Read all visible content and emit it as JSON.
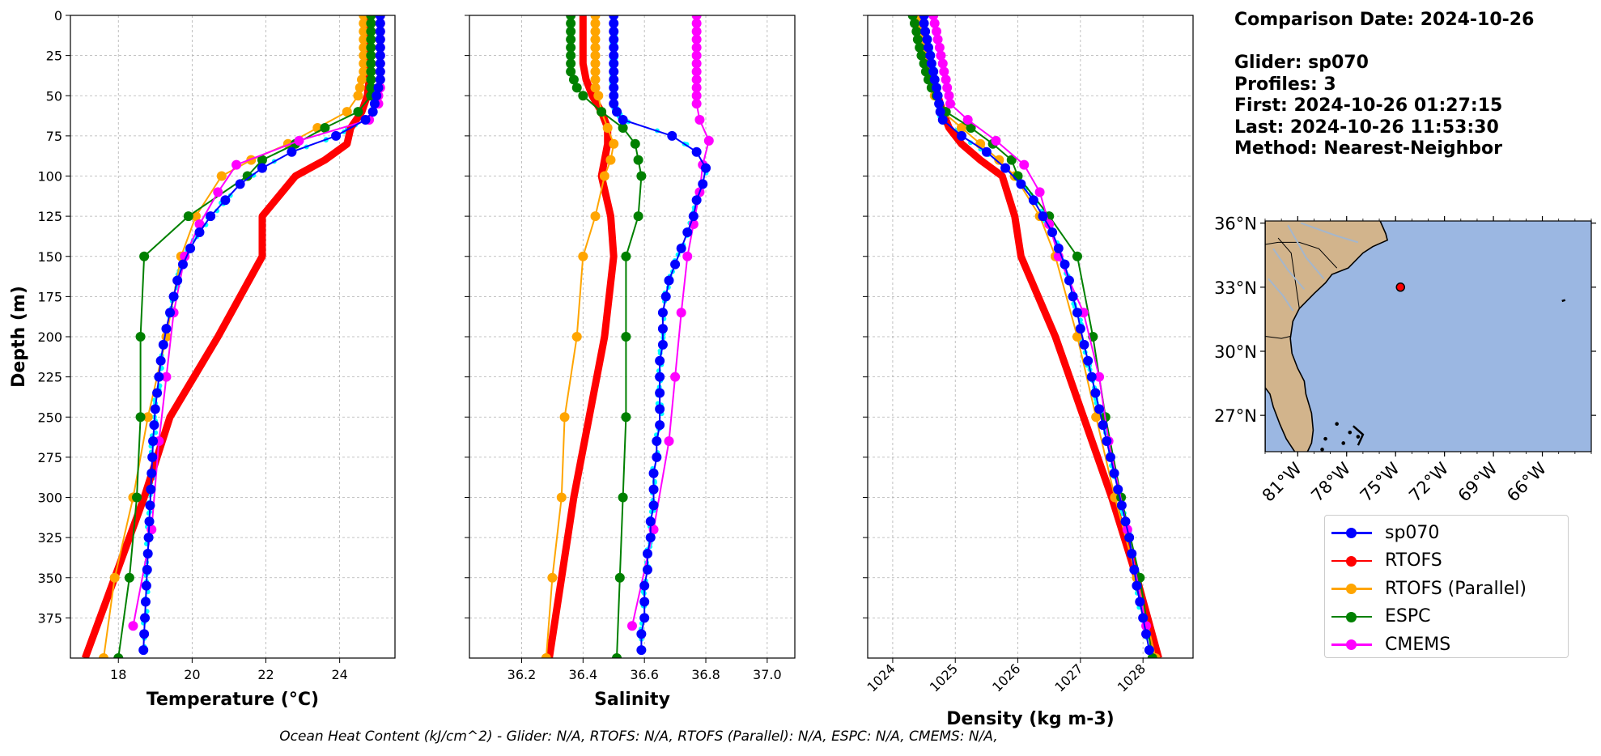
{
  "info": {
    "comparison_date": "Comparison Date: 2024-10-26",
    "glider": "Glider: sp070",
    "profiles": "Profiles: 3",
    "first": "First: 2024-10-26 01:27:15",
    "last": "Last: 2024-10-26 11:53:30",
    "method": "Method: Nearest-Neighbor"
  },
  "footer": "Ocean Heat Content (kJ/cm^2) - Glider: N/A,  RTOFS: N/A,  RTOFS (Parallel): N/A,  ESPC: N/A,  CMEMS: N/A,",
  "colors": {
    "sp070": "#0000ff",
    "raw": "#00ffff",
    "RTOFS": "#ff0000",
    "RTOFS (Parallel)": "#ffa500",
    "ESPC": "#008000",
    "CMEMS": "#ff00ff",
    "land": "#d2b48c",
    "ocean": "#9bb7e2",
    "grid": "#b0b0b0"
  },
  "legend": [
    {
      "label": "sp070",
      "color": "#0000ff"
    },
    {
      "label": "RTOFS",
      "color": "#ff0000"
    },
    {
      "label": "RTOFS (Parallel)",
      "color": "#ffa500"
    },
    {
      "label": "ESPC",
      "color": "#008000"
    },
    {
      "label": "CMEMS",
      "color": "#ff00ff"
    }
  ],
  "chart_data": [
    {
      "type": "line",
      "xlabel": "Temperature (°C)",
      "ylabel": "Depth (m)",
      "xlim": [
        16.7,
        25.5
      ],
      "ylim": [
        400,
        0
      ],
      "xticks": [
        18,
        20,
        22,
        24
      ],
      "yticks": [
        0,
        25,
        50,
        75,
        100,
        125,
        150,
        175,
        200,
        225,
        250,
        275,
        300,
        325,
        350,
        375
      ],
      "grid": true,
      "series": [
        {
          "name": "sp070",
          "depth": [
            0,
            5,
            10,
            15,
            20,
            25,
            30,
            35,
            40,
            45,
            50,
            55,
            60,
            65,
            75,
            85,
            95,
            105,
            115,
            125,
            135,
            145,
            155,
            165,
            175,
            185,
            195,
            205,
            215,
            225,
            235,
            245,
            255,
            265,
            275,
            285,
            295,
            305,
            315,
            325,
            335,
            345,
            355,
            365,
            375,
            385,
            395
          ],
          "values": [
            25.1,
            25.1,
            25.1,
            25.1,
            25.1,
            25.1,
            25.1,
            25.1,
            25.1,
            25.05,
            25.0,
            24.95,
            24.9,
            24.7,
            23.9,
            22.7,
            21.9,
            21.3,
            20.9,
            20.5,
            20.2,
            19.95,
            19.75,
            19.6,
            19.5,
            19.4,
            19.3,
            19.22,
            19.15,
            19.1,
            19.05,
            19.0,
            18.97,
            18.94,
            18.92,
            18.9,
            18.88,
            18.86,
            18.84,
            18.82,
            18.8,
            18.78,
            18.76,
            18.74,
            18.72,
            18.7,
            18.68
          ]
        },
        {
          "name": "RTOFS",
          "depth": [
            0,
            10,
            20,
            30,
            40,
            50,
            60,
            70,
            80,
            90,
            100,
            125,
            150,
            200,
            250,
            300,
            350,
            400
          ],
          "values": [
            24.8,
            24.8,
            24.8,
            24.8,
            24.8,
            24.75,
            24.6,
            24.3,
            24.2,
            23.6,
            22.8,
            21.9,
            21.9,
            20.7,
            19.4,
            18.7,
            17.9,
            17.1
          ]
        },
        {
          "name": "RTOFS (Parallel)",
          "depth": [
            0,
            5,
            10,
            15,
            20,
            25,
            30,
            35,
            40,
            45,
            50,
            60,
            70,
            80,
            90,
            100,
            125,
            150,
            200,
            250,
            300,
            350,
            400
          ],
          "values": [
            24.65,
            24.65,
            24.65,
            24.65,
            24.65,
            24.65,
            24.65,
            24.65,
            24.6,
            24.55,
            24.5,
            24.2,
            23.4,
            22.6,
            21.6,
            20.8,
            20.1,
            19.7,
            19.3,
            18.8,
            18.4,
            17.9,
            17.6
          ]
        },
        {
          "name": "ESPC",
          "depth": [
            0,
            5,
            10,
            15,
            20,
            25,
            30,
            35,
            40,
            45,
            50,
            60,
            70,
            80,
            90,
            100,
            125,
            150,
            200,
            250,
            300,
            350,
            400
          ],
          "values": [
            24.85,
            24.85,
            24.85,
            24.85,
            24.85,
            24.85,
            24.85,
            24.85,
            24.85,
            24.85,
            24.85,
            24.5,
            23.6,
            22.8,
            21.9,
            21.5,
            19.9,
            18.7,
            18.6,
            18.6,
            18.5,
            18.3,
            18.0
          ]
        },
        {
          "name": "CMEMS",
          "depth": [
            0,
            5,
            10,
            15,
            20,
            25,
            30,
            35,
            40,
            45,
            50,
            55,
            65,
            78,
            93,
            110,
            130,
            150,
            185,
            225,
            265,
            320,
            380
          ],
          "values": [
            25.1,
            25.1,
            25.1,
            25.1,
            25.1,
            25.1,
            25.1,
            25.1,
            25.1,
            25.1,
            25.05,
            25.05,
            24.8,
            22.9,
            21.2,
            20.7,
            20.2,
            19.8,
            19.5,
            19.3,
            19.1,
            18.9,
            18.4
          ]
        }
      ]
    },
    {
      "type": "line",
      "xlabel": "Salinity",
      "xlim": [
        36.03,
        37.09
      ],
      "ylim": [
        400,
        0
      ],
      "xticks": [
        36.2,
        36.4,
        36.6,
        36.8,
        37.0
      ],
      "grid": true,
      "series": [
        {
          "name": "sp070",
          "depth": [
            0,
            5,
            10,
            15,
            20,
            25,
            30,
            35,
            40,
            45,
            50,
            55,
            60,
            65,
            75,
            85,
            95,
            105,
            115,
            125,
            135,
            145,
            155,
            165,
            175,
            185,
            195,
            205,
            215,
            225,
            235,
            245,
            255,
            265,
            275,
            285,
            295,
            305,
            315,
            325,
            335,
            345,
            355,
            365,
            375,
            385,
            395
          ],
          "values": [
            36.5,
            36.5,
            36.5,
            36.5,
            36.5,
            36.5,
            36.5,
            36.5,
            36.5,
            36.5,
            36.5,
            36.5,
            36.51,
            36.53,
            36.69,
            36.77,
            36.8,
            36.79,
            36.77,
            36.76,
            36.74,
            36.72,
            36.7,
            36.68,
            36.67,
            36.66,
            36.66,
            36.66,
            36.65,
            36.65,
            36.65,
            36.65,
            36.65,
            36.64,
            36.64,
            36.63,
            36.63,
            36.63,
            36.62,
            36.62,
            36.61,
            36.61,
            36.6,
            36.6,
            36.6,
            36.59,
            36.59
          ]
        },
        {
          "name": "RTOFS",
          "depth": [
            0,
            10,
            20,
            30,
            40,
            50,
            60,
            70,
            80,
            90,
            100,
            125,
            150,
            200,
            250,
            300,
            350,
            400
          ],
          "values": [
            36.4,
            36.4,
            36.4,
            36.4,
            36.41,
            36.43,
            36.46,
            36.48,
            36.48,
            36.47,
            36.46,
            36.49,
            36.5,
            36.47,
            36.42,
            36.37,
            36.33,
            36.29
          ]
        },
        {
          "name": "RTOFS (Parallel)",
          "depth": [
            0,
            5,
            10,
            15,
            20,
            25,
            30,
            35,
            40,
            45,
            50,
            60,
            70,
            80,
            90,
            100,
            125,
            150,
            200,
            250,
            300,
            350,
            400
          ],
          "values": [
            36.44,
            36.44,
            36.44,
            36.44,
            36.44,
            36.44,
            36.44,
            36.44,
            36.44,
            36.44,
            36.45,
            36.46,
            36.48,
            36.5,
            36.49,
            36.47,
            36.44,
            36.4,
            36.38,
            36.34,
            36.33,
            36.3,
            36.28
          ]
        },
        {
          "name": "ESPC",
          "depth": [
            0,
            5,
            10,
            15,
            20,
            25,
            30,
            35,
            40,
            45,
            50,
            60,
            70,
            80,
            90,
            100,
            125,
            150,
            200,
            250,
            300,
            350,
            400
          ],
          "values": [
            36.36,
            36.36,
            36.36,
            36.36,
            36.36,
            36.36,
            36.36,
            36.36,
            36.37,
            36.38,
            36.4,
            36.46,
            36.53,
            36.57,
            36.58,
            36.59,
            36.58,
            36.54,
            36.54,
            36.54,
            36.53,
            36.52,
            36.51
          ]
        },
        {
          "name": "CMEMS",
          "depth": [
            0,
            5,
            10,
            15,
            20,
            25,
            30,
            35,
            40,
            45,
            50,
            55,
            65,
            78,
            93,
            110,
            130,
            150,
            185,
            225,
            265,
            320,
            380
          ],
          "values": [
            36.77,
            36.77,
            36.77,
            36.77,
            36.77,
            36.77,
            36.77,
            36.77,
            36.77,
            36.77,
            36.77,
            36.77,
            36.78,
            36.81,
            36.79,
            36.78,
            36.76,
            36.74,
            36.72,
            36.7,
            36.68,
            36.63,
            36.56
          ]
        }
      ]
    },
    {
      "type": "line",
      "xlabel": "Density (kg m-3)",
      "xlim": [
        1023.6,
        1028.8
      ],
      "ylim": [
        400,
        0
      ],
      "xticks": [
        1024,
        1025,
        1026,
        1027,
        1028
      ],
      "grid": true,
      "series": [
        {
          "name": "sp070",
          "depth": [
            0,
            5,
            10,
            15,
            20,
            25,
            30,
            35,
            40,
            45,
            50,
            55,
            60,
            65,
            75,
            85,
            95,
            105,
            115,
            125,
            135,
            145,
            155,
            165,
            175,
            185,
            195,
            205,
            215,
            225,
            235,
            245,
            255,
            265,
            275,
            285,
            295,
            305,
            315,
            325,
            335,
            345,
            355,
            365,
            375,
            385,
            395
          ],
          "values": [
            1024.5,
            1024.5,
            1024.52,
            1024.55,
            1024.57,
            1024.6,
            1024.62,
            1024.65,
            1024.67,
            1024.7,
            1024.72,
            1024.74,
            1024.76,
            1024.8,
            1025.1,
            1025.5,
            1025.8,
            1026.05,
            1026.25,
            1026.4,
            1026.55,
            1026.65,
            1026.75,
            1026.82,
            1026.88,
            1026.95,
            1027.0,
            1027.06,
            1027.12,
            1027.18,
            1027.24,
            1027.3,
            1027.36,
            1027.42,
            1027.48,
            1027.54,
            1027.6,
            1027.66,
            1027.72,
            1027.78,
            1027.82,
            1027.86,
            1027.9,
            1027.95,
            1028.0,
            1028.05,
            1028.1
          ]
        },
        {
          "name": "RTOFS",
          "depth": [
            0,
            10,
            20,
            30,
            40,
            50,
            60,
            70,
            80,
            90,
            100,
            125,
            150,
            200,
            250,
            300,
            350,
            400
          ],
          "values": [
            1024.45,
            1024.5,
            1024.55,
            1024.6,
            1024.65,
            1024.72,
            1024.8,
            1024.9,
            1025.1,
            1025.4,
            1025.75,
            1025.95,
            1026.05,
            1026.6,
            1027.05,
            1027.5,
            1027.9,
            1028.25
          ]
        },
        {
          "name": "RTOFS (Parallel)",
          "depth": [
            0,
            5,
            10,
            15,
            20,
            25,
            30,
            35,
            40,
            45,
            50,
            60,
            70,
            80,
            90,
            100,
            125,
            150,
            200,
            250,
            300,
            350,
            400
          ],
          "values": [
            1024.4,
            1024.42,
            1024.45,
            1024.47,
            1024.5,
            1024.52,
            1024.55,
            1024.58,
            1024.6,
            1024.63,
            1024.67,
            1024.8,
            1025.1,
            1025.4,
            1025.7,
            1025.95,
            1026.35,
            1026.6,
            1026.95,
            1027.25,
            1027.55,
            1027.9,
            1028.2
          ]
        },
        {
          "name": "ESPC",
          "depth": [
            0,
            5,
            10,
            15,
            20,
            25,
            30,
            35,
            40,
            45,
            50,
            60,
            70,
            80,
            90,
            100,
            125,
            150,
            200,
            250,
            300,
            350,
            400
          ],
          "values": [
            1024.32,
            1024.35,
            1024.38,
            1024.4,
            1024.43,
            1024.46,
            1024.5,
            1024.53,
            1024.57,
            1024.62,
            1024.7,
            1024.85,
            1025.25,
            1025.6,
            1025.9,
            1026.0,
            1026.5,
            1026.95,
            1027.2,
            1027.4,
            1027.65,
            1027.95,
            1028.15
          ]
        },
        {
          "name": "CMEMS",
          "depth": [
            0,
            5,
            10,
            15,
            20,
            25,
            30,
            35,
            40,
            45,
            50,
            55,
            65,
            78,
            93,
            110,
            130,
            150,
            185,
            225,
            265,
            320,
            380
          ],
          "values": [
            1024.65,
            1024.67,
            1024.7,
            1024.72,
            1024.75,
            1024.77,
            1024.8,
            1024.82,
            1024.85,
            1024.87,
            1024.9,
            1024.92,
            1025.2,
            1025.65,
            1026.1,
            1026.35,
            1026.5,
            1026.65,
            1027.05,
            1027.3,
            1027.45,
            1027.75,
            1028.05
          ]
        }
      ]
    }
  ],
  "map": {
    "lon_range": [
      -83,
      -63
    ],
    "lat_range": [
      25.3,
      36.1
    ],
    "xticks": [
      -81,
      -78,
      -75,
      -72,
      -69,
      -66
    ],
    "xtick_labels": [
      "81°W",
      "78°W",
      "75°W",
      "72°W",
      "69°W",
      "66°W"
    ],
    "yticks": [
      27,
      30,
      33,
      36
    ],
    "ytick_labels": [
      "27°N",
      "30°N",
      "33°N",
      "36°N"
    ],
    "glider_position": [
      -74.7,
      33.0
    ]
  }
}
